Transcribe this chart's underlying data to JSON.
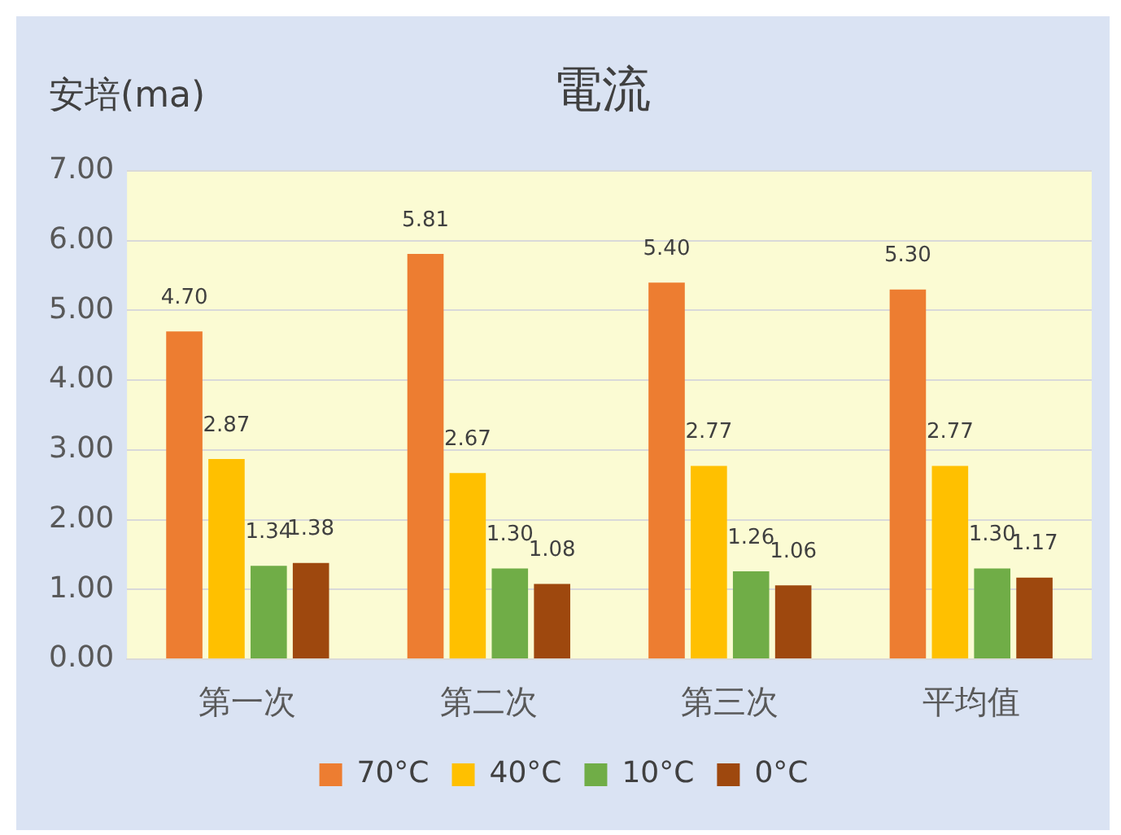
{
  "chart_data": {
    "type": "bar",
    "title": "電流",
    "ylabel": "安培(ma)",
    "categories": [
      "第一次",
      "第二次",
      "第三次",
      "平均值"
    ],
    "series": [
      {
        "name": "70°C",
        "color": "#ed7d31",
        "values": [
          4.7,
          5.81,
          5.4,
          5.3
        ],
        "value_labels": [
          "4.70",
          "5.81",
          "5.40",
          "5.30"
        ]
      },
      {
        "name": "40°C",
        "color": "#ffc000",
        "values": [
          2.87,
          2.67,
          2.77,
          2.77
        ],
        "value_labels": [
          "2.87",
          "2.67",
          "2.77",
          "2.77"
        ]
      },
      {
        "name": "10°C",
        "color": "#70ad47",
        "values": [
          1.34,
          1.3,
          1.26,
          1.3
        ],
        "value_labels": [
          "1.34",
          "1.30",
          "1.26",
          "1.30"
        ]
      },
      {
        "name": "0°C",
        "color": "#9e480e",
        "values": [
          1.38,
          1.08,
          1.06,
          1.17
        ],
        "value_labels": [
          "1.38",
          "1.08",
          "1.06",
          "1.17"
        ]
      }
    ],
    "ylim": [
      0,
      7
    ],
    "yticks": [
      {
        "value": 0,
        "label": "0.00"
      },
      {
        "value": 1,
        "label": "1.00"
      },
      {
        "value": 2,
        "label": "2.00"
      },
      {
        "value": 3,
        "label": "3.00"
      },
      {
        "value": 4,
        "label": "4.00"
      },
      {
        "value": 5,
        "label": "5.00"
      },
      {
        "value": 6,
        "label": "6.00"
      },
      {
        "value": 7,
        "label": "7.00"
      }
    ],
    "grid": "y",
    "legend": "bottom"
  }
}
